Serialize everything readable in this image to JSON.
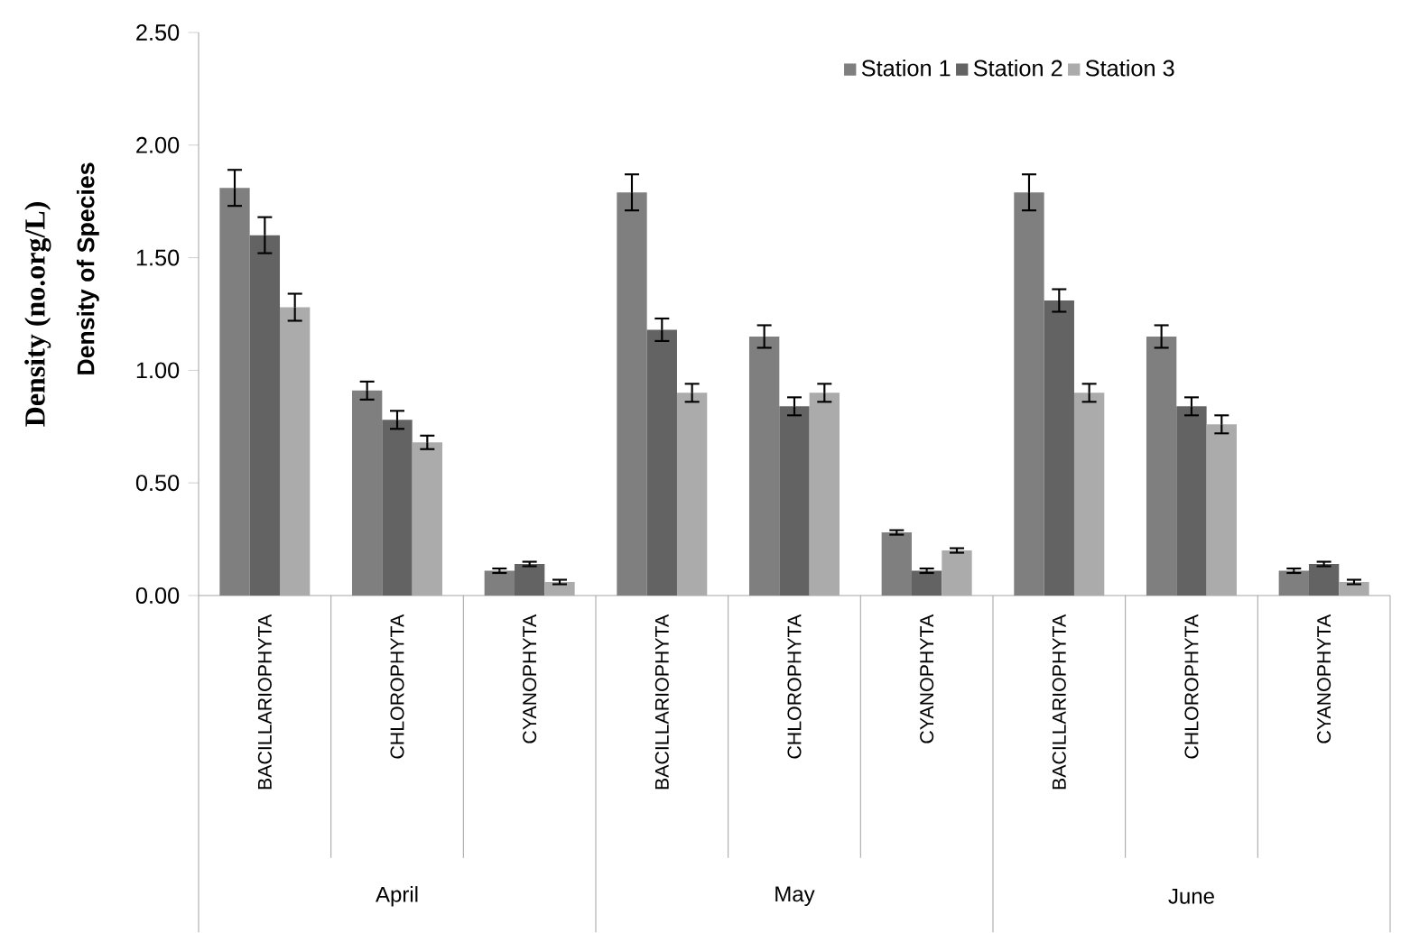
{
  "chart_data": {
    "type": "bar",
    "ylabel": "Density (no.org/L)",
    "categories": [
      "BACILLARIOPHYTA",
      "CHLOROPHYTA",
      "CYANOPHYTA",
      "BACILLARIOPHYTA",
      "CHLOROPHYTA",
      "CYANOPHYTA",
      "BACILLARIOPHYTA",
      "CHLOROPHYTA",
      "CYANOPHYTA"
    ],
    "series": [
      {
        "name": "Station 1",
        "color": "#7f7f7f",
        "values": [
          1.81,
          0.91,
          0.11,
          1.79,
          1.15,
          0.28,
          1.79,
          1.15,
          0.11
        ],
        "errors": [
          0.08,
          0.04,
          0.01,
          0.08,
          0.05,
          0.01,
          0.08,
          0.05,
          0.01
        ]
      },
      {
        "name": "Station 2",
        "color": "#636363",
        "values": [
          1.6,
          0.78,
          0.14,
          1.18,
          0.84,
          0.11,
          1.31,
          0.84,
          0.14
        ],
        "errors": [
          0.08,
          0.04,
          0.01,
          0.05,
          0.04,
          0.01,
          0.05,
          0.04,
          0.01
        ]
      },
      {
        "name": "Station 3",
        "color": "#ababab",
        "values": [
          1.28,
          0.68,
          0.06,
          0.9,
          0.9,
          0.2,
          0.9,
          0.76,
          0.06
        ],
        "errors": [
          0.06,
          0.03,
          0.01,
          0.04,
          0.04,
          0.01,
          0.04,
          0.04,
          0.01
        ]
      }
    ],
    "ylim": [
      0,
      2.5
    ],
    "yticks": [
      {
        "value": 0,
        "label": "0.00"
      },
      {
        "value": 0.5,
        "label": "0.50"
      },
      {
        "value": 1,
        "label": "1.00"
      },
      {
        "value": 1.5,
        "label": "1.50"
      },
      {
        "value": 2,
        "label": "2.00"
      },
      {
        "value": 2.5,
        "label": "2.50"
      }
    ],
    "annotations": [
      "Density of Species",
      "April",
      "May",
      "June"
    ],
    "legend": "top right",
    "grid": false
  }
}
